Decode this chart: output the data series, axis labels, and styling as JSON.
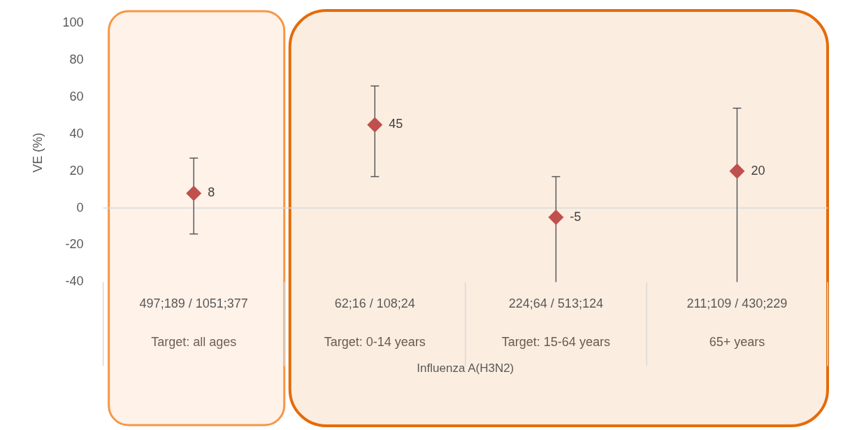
{
  "chart_data": {
    "type": "scatter",
    "ylabel": "VE (%)",
    "categories": [
      "Target: all ages",
      "Target: 0-14 years",
      "Target: 15-64 years",
      "65+ years"
    ],
    "series": [
      {
        "color": "#c0504d",
        "values": [
          8,
          45,
          -5,
          20
        ],
        "errors": [
          [
            -14,
            27
          ],
          [
            17,
            66
          ],
          [
            -40,
            17
          ],
          [
            -40,
            54
          ]
        ]
      }
    ],
    "ylim": [
      -40,
      100
    ],
    "yticks": [
      -40,
      -20,
      0,
      20,
      40,
      60,
      80,
      100
    ],
    "legend": false,
    "marker": "diamond",
    "data_labels": true,
    "ref_lines": [
      {
        "axis": "y",
        "value": 0,
        "color": "#d9d9d9"
      }
    ],
    "bands": [
      {
        "axis": "x",
        "from": "Target: all ages",
        "to": "Target: all ages",
        "color": "#f79646"
      },
      {
        "axis": "x",
        "from": "Target: 0-14 years",
        "to": "65+ years",
        "color": "#e46c0a"
      }
    ],
    "annotations": [
      "497;189 / 1051;377",
      "62;16 / 108;24",
      "224;64 / 513;124",
      "211;109 / 430;229",
      "Influenza A(H3N2)"
    ]
  }
}
